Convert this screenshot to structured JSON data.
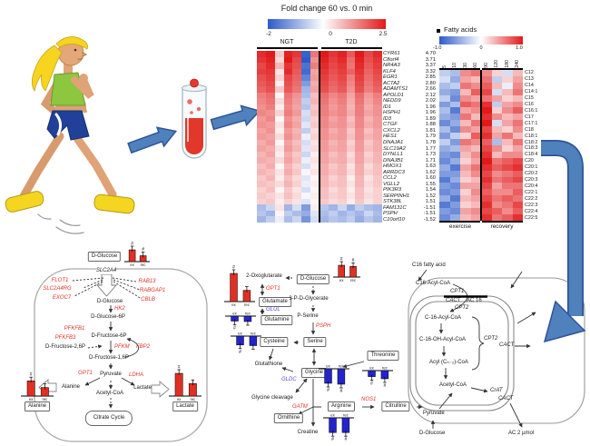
{
  "colors": {
    "heat_red": "#e11919",
    "heat_blue": "#2d5ac8",
    "bar_red": "#e03024",
    "bar_blue": "#2424cc",
    "arrow_blue": "#4f81bd",
    "arrow_border": "#2f5597",
    "enzyme_up": "#e03228",
    "enzyme_down": "#5050c8"
  },
  "gene_heatmap": {
    "title": "Fold change 60 vs. 0 min",
    "colorbar": {
      "min": "-2",
      "mid": "0",
      "max": "2.5"
    },
    "groups": [
      "NGT",
      "T2D"
    ],
    "group_split": 7,
    "domain": [
      -2,
      2.5
    ],
    "genes": [
      {
        "name": "CYR61",
        "fold": "4.70"
      },
      {
        "name": "C8orf4",
        "fold": "3.71"
      },
      {
        "name": "NR4A3",
        "fold": "3.37"
      },
      {
        "name": "KLF4",
        "fold": "3.32"
      },
      {
        "name": "EGR1",
        "fold": "2.85"
      },
      {
        "name": "ACTA2",
        "fold": "2.80"
      },
      {
        "name": "ADAMTS1",
        "fold": "2.66"
      },
      {
        "name": "APOLD1",
        "fold": "2.12"
      },
      {
        "name": "NEDD9",
        "fold": "2.02"
      },
      {
        "name": "ID1",
        "fold": "1.96"
      },
      {
        "name": "HSPH1",
        "fold": "1.96"
      },
      {
        "name": "ID3",
        "fold": "1.89"
      },
      {
        "name": "CTGF",
        "fold": "1.88"
      },
      {
        "name": "CXCL2",
        "fold": "1.81"
      },
      {
        "name": "HES1",
        "fold": "1.79"
      },
      {
        "name": "DNAJA1",
        "fold": "1.78"
      },
      {
        "name": "SLC19A2",
        "fold": "1.77"
      },
      {
        "name": "DYNLL1",
        "fold": "1.73"
      },
      {
        "name": "DNAJB1",
        "fold": "1.71"
      },
      {
        "name": "HMOX1",
        "fold": "1.63"
      },
      {
        "name": "ARRDC3",
        "fold": "1.62"
      },
      {
        "name": "CCL2",
        "fold": "1.60"
      },
      {
        "name": "VGLL2",
        "fold": "1.55"
      },
      {
        "name": "PIK3R3",
        "fold": "1.54"
      },
      {
        "name": "SERPINH1",
        "fold": "1.52"
      },
      {
        "name": "STK38L",
        "fold": "1.51"
      },
      {
        "name": "FAM131C",
        "fold": "-1.51"
      },
      {
        "name": "PSPH",
        "fold": "-1.51"
      },
      {
        "name": "C10orf10",
        "fold": "-1.52"
      }
    ],
    "matrix": [
      [
        2.3,
        2.5,
        0.6,
        2.4,
        2.2,
        -1.9,
        1.5,
        2.5,
        2.2,
        2.4,
        1.8,
        2.5,
        2.0,
        2.3
      ],
      [
        2.2,
        2.4,
        0.4,
        2.5,
        2.0,
        -2.0,
        1.2,
        2.4,
        2.1,
        2.3,
        1.6,
        2.4,
        1.9,
        2.2
      ],
      [
        2.0,
        2.3,
        0.8,
        2.2,
        1.9,
        -1.7,
        1.4,
        2.3,
        2.0,
        2.2,
        1.5,
        2.3,
        1.8,
        2.1
      ],
      [
        2.1,
        2.2,
        0.3,
        2.3,
        1.8,
        -1.8,
        1.0,
        2.2,
        1.9,
        2.1,
        1.7,
        2.2,
        1.7,
        2.0
      ],
      [
        1.9,
        2.1,
        0.5,
        2.0,
        1.7,
        -1.5,
        1.1,
        2.1,
        1.8,
        2.0,
        1.4,
        2.1,
        1.6,
        1.9
      ],
      [
        1.8,
        2.0,
        0.2,
        1.9,
        1.6,
        -1.2,
        0.9,
        2.0,
        1.7,
        1.9,
        1.3,
        2.0,
        1.5,
        1.8
      ],
      [
        1.7,
        1.9,
        0.6,
        1.8,
        1.5,
        -0.9,
        1.0,
        1.9,
        1.6,
        1.8,
        1.2,
        1.9,
        1.4,
        1.7
      ],
      [
        1.4,
        1.6,
        0.1,
        1.5,
        1.2,
        -0.8,
        0.7,
        1.6,
        1.3,
        1.5,
        1.0,
        1.6,
        1.1,
        1.4
      ],
      [
        1.3,
        1.5,
        0.4,
        1.4,
        1.1,
        -0.6,
        0.8,
        1.5,
        1.2,
        1.4,
        0.9,
        1.5,
        1.0,
        1.3
      ],
      [
        1.2,
        1.4,
        0.2,
        1.3,
        1.0,
        -0.7,
        0.6,
        1.4,
        1.1,
        1.3,
        0.8,
        1.4,
        0.9,
        1.2
      ],
      [
        1.3,
        1.2,
        0.5,
        1.4,
        1.1,
        -0.4,
        0.7,
        1.4,
        1.2,
        1.3,
        0.9,
        1.4,
        1.0,
        1.2
      ],
      [
        1.1,
        1.3,
        0.1,
        1.2,
        0.9,
        -0.5,
        0.5,
        1.3,
        1.0,
        1.2,
        0.7,
        1.3,
        0.8,
        1.1
      ],
      [
        1.2,
        1.1,
        0.3,
        1.3,
        1.0,
        -0.3,
        0.6,
        1.3,
        1.1,
        1.2,
        0.8,
        1.3,
        0.9,
        1.1
      ],
      [
        1.0,
        1.2,
        0.2,
        1.1,
        0.8,
        -0.6,
        0.4,
        1.2,
        0.9,
        1.1,
        0.6,
        1.2,
        0.7,
        1.0
      ],
      [
        1.1,
        1.0,
        0.4,
        1.2,
        0.9,
        -0.2,
        0.5,
        1.2,
        1.0,
        1.1,
        0.7,
        1.2,
        0.8,
        1.0
      ],
      [
        0.9,
        1.1,
        0.1,
        1.0,
        0.7,
        -0.4,
        0.3,
        1.1,
        0.8,
        1.0,
        0.5,
        1.1,
        0.6,
        0.9
      ],
      [
        1.0,
        0.9,
        0.3,
        1.1,
        0.8,
        -0.3,
        0.4,
        1.1,
        0.9,
        1.0,
        0.6,
        1.1,
        0.7,
        0.9
      ],
      [
        0.8,
        1.0,
        0.2,
        0.9,
        0.6,
        -0.5,
        0.2,
        1.0,
        0.7,
        0.9,
        0.4,
        1.0,
        0.5,
        0.8
      ],
      [
        0.9,
        0.8,
        0.4,
        1.0,
        0.7,
        -0.2,
        0.3,
        1.0,
        0.8,
        0.9,
        0.5,
        1.0,
        0.6,
        0.8
      ],
      [
        0.7,
        0.9,
        0.1,
        0.8,
        0.5,
        -0.4,
        0.2,
        0.9,
        0.6,
        0.8,
        0.3,
        0.9,
        0.4,
        0.7
      ],
      [
        0.8,
        0.7,
        0.3,
        0.9,
        0.6,
        -0.1,
        0.3,
        0.9,
        0.7,
        0.8,
        0.4,
        0.9,
        0.5,
        0.7
      ],
      [
        0.6,
        0.8,
        0.2,
        0.7,
        0.4,
        -0.3,
        0.1,
        0.8,
        0.5,
        0.7,
        0.2,
        0.8,
        0.3,
        0.6
      ],
      [
        0.7,
        0.6,
        0.4,
        0.8,
        0.5,
        -0.2,
        0.2,
        0.8,
        0.6,
        0.7,
        0.3,
        0.8,
        0.4,
        0.6
      ],
      [
        0.5,
        0.7,
        0.1,
        0.6,
        0.3,
        -0.4,
        0.1,
        0.7,
        0.4,
        0.6,
        0.2,
        0.7,
        0.3,
        0.5
      ],
      [
        0.6,
        0.5,
        0.3,
        0.7,
        0.4,
        -0.1,
        0.2,
        0.7,
        0.5,
        0.6,
        0.3,
        0.7,
        0.4,
        0.5
      ],
      [
        0.5,
        0.6,
        0.2,
        0.5,
        0.3,
        -0.3,
        0.1,
        0.6,
        0.4,
        0.5,
        0.2,
        0.6,
        0.3,
        0.5
      ],
      [
        -0.8,
        -0.5,
        0.3,
        -0.9,
        -0.4,
        -1.2,
        0.2,
        -0.7,
        -0.9,
        -0.5,
        -1.0,
        -0.6,
        -0.8,
        -0.9
      ],
      [
        -0.7,
        -0.9,
        0.1,
        -0.6,
        -0.8,
        -1.0,
        -0.3,
        -0.8,
        -0.6,
        -0.9,
        -0.7,
        -0.9,
        -0.5,
        -0.8
      ],
      [
        -0.9,
        -0.6,
        -0.2,
        -0.8,
        -0.5,
        -1.3,
        -0.4,
        -0.9,
        -0.7,
        -0.8,
        -0.6,
        -1.0,
        -0.7,
        -0.9
      ]
    ]
  },
  "fatty_heatmap": {
    "title": "Fatty acids",
    "colorbar": {
      "min": "-1.0",
      "mid": "0",
      "max": "1.0"
    },
    "domain": [
      -1,
      1
    ],
    "col_labels": [
      "5",
      "10",
      "30",
      "60",
      "90",
      "120",
      "180",
      "240"
    ],
    "group_split": 4,
    "row_labels": [
      "C12",
      "C13",
      "C14",
      "C14:1",
      "C15",
      "C16",
      "C16:1",
      "C17",
      "C17:1",
      "C18",
      "C18:1",
      "C18:2",
      "C18:3",
      "C18:4",
      "C20",
      "C20:1",
      "C20:2",
      "C20:3",
      "C20:4",
      "C22:1",
      "C22:2",
      "C22:3",
      "C22:4",
      "C22:5"
    ],
    "phase_labels": [
      "exercise",
      "recovery"
    ],
    "matrix": [
      [
        -0.3,
        -0.4,
        0.5,
        0.6,
        0.5,
        0.2,
        -0.2,
        0.3
      ],
      [
        -0.2,
        -0.5,
        0.4,
        0.3,
        0.6,
        -0.3,
        0.2,
        0.4
      ],
      [
        -0.4,
        -0.3,
        0.6,
        0.5,
        0.7,
        0.3,
        -0.1,
        0.5
      ],
      [
        -0.5,
        -0.6,
        0.3,
        0.7,
        0.8,
        -0.2,
        0.3,
        0.6
      ],
      [
        -0.3,
        -0.7,
        0.5,
        0.4,
        0.6,
        0.4,
        0.2,
        0.3
      ],
      [
        -0.6,
        -0.4,
        0.7,
        0.6,
        0.9,
        -0.3,
        0.4,
        0.5
      ],
      [
        -0.4,
        -0.8,
        0.4,
        0.5,
        1.0,
        0.2,
        0.5,
        0.7
      ],
      [
        -0.5,
        -0.6,
        0.6,
        0.3,
        0.9,
        0.5,
        0.3,
        0.4
      ],
      [
        -0.7,
        -0.5,
        0.3,
        0.6,
        1.0,
        -0.2,
        0.4,
        0.6
      ],
      [
        -0.4,
        -0.7,
        0.5,
        0.4,
        0.8,
        0.3,
        0.2,
        0.5
      ],
      [
        -0.6,
        -0.3,
        0.2,
        0.7,
        0.9,
        0.4,
        0.6,
        0.3
      ],
      [
        -0.3,
        -0.6,
        0.6,
        0.5,
        0.7,
        -0.4,
        0.3,
        0.6
      ],
      [
        -0.5,
        -0.4,
        0.4,
        0.3,
        0.8,
        0.5,
        0.2,
        0.4
      ],
      [
        -0.6,
        -0.7,
        0.3,
        0.5,
        0.9,
        0.3,
        0.5,
        0.5
      ],
      [
        -0.7,
        -0.5,
        0.2,
        0.4,
        1.0,
        0.6,
        0.7,
        0.8
      ],
      [
        -0.5,
        -0.8,
        0.4,
        0.6,
        0.9,
        0.7,
        0.8,
        0.9
      ],
      [
        -0.6,
        -0.6,
        0.3,
        0.5,
        0.8,
        0.5,
        0.6,
        0.7
      ],
      [
        -0.8,
        -0.5,
        0.2,
        0.3,
        0.9,
        0.6,
        0.7,
        0.8
      ],
      [
        -0.6,
        -0.7,
        0.4,
        0.4,
        0.8,
        0.4,
        0.6,
        0.6
      ],
      [
        -0.7,
        -0.6,
        0.2,
        0.5,
        0.7,
        0.5,
        0.5,
        0.7
      ],
      [
        -0.5,
        -0.8,
        0.3,
        0.4,
        0.8,
        0.6,
        0.7,
        0.6
      ],
      [
        -0.8,
        -0.6,
        0.2,
        0.3,
        0.9,
        0.5,
        0.6,
        0.8
      ],
      [
        -0.6,
        -0.7,
        0.4,
        0.5,
        0.8,
        0.7,
        0.5,
        0.7
      ],
      [
        -0.7,
        -0.5,
        0.3,
        0.4,
        0.9,
        0.6,
        0.7,
        0.9
      ]
    ]
  },
  "glycolysis": {
    "glucose_box": "D-Glucose",
    "transporter": "SLC2A4",
    "regulators": [
      "FLOT1",
      "SLC2A4RG",
      "EXOC7",
      "RAB13",
      "RABGAP1",
      "CBLB"
    ],
    "glucose_in": "D-Glucose",
    "hk2": "HK2",
    "g6p": "D-Glucose-6P",
    "f6p": "D-Fructose-6P",
    "pfkfb1": "PFKFB1",
    "pfkfb3": "PFKFB3",
    "pfkm": "PFKM",
    "fbp2": "FBP2",
    "f26p": "D-Fructose-2,6P",
    "f16p": "D-Fructose-1,6P",
    "pyruvate": "Pyruvate",
    "gpt1": "GPT1",
    "ldha": "LDHA",
    "alanine": "Alanine",
    "lactate": "Lactate",
    "acetyl_coa": "Acetyl-CoA",
    "citrate_cycle": "Citrate Cycle",
    "alanine_bar_label": "Alanine",
    "lactate_bar_label": "Lactate"
  },
  "amino_acids": {
    "oxoglutarate": "2-Oxoglutarate",
    "gpt1": "GPT1",
    "glutamate": "Glutamate",
    "glul": "GLUL",
    "glutamine": "Glutamine",
    "glucose_box": "D-Glucose",
    "glycerate": "3-P-D-Glycerate",
    "p_serine": "P-Serine",
    "psph": "PSPH",
    "serine": "Serine",
    "cysteine": "Cysteine",
    "glutathione": "Glutathione",
    "glycine": "Glycine",
    "threonine": "Threonine",
    "gldc": "GLDC",
    "glycine_cleavage": "Glycine cleavage",
    "gatm": "GATM",
    "ornithine": "Ornithine",
    "arginine": "Arginine",
    "nos1": "NOS1",
    "citrulline": "Citrulline",
    "creatine": "Creatine"
  },
  "beta_oxidation": {
    "c16_fatty_acid": "C16 fatty acid",
    "c16_acyl_coa": "C16-Acyl-CoA",
    "cpt1": "CPT1",
    "cact_membrane": "CACT",
    "ac16": "AC 16",
    "cpt2_membrane": "CPT2",
    "c16_acyl_coa_matrix": "C-16-Acyl-CoA",
    "c16_oh_acyl_coa": "C-16-OH-Acyl-CoA",
    "acyl_coa": "Acyl (Cₙ₋₂)-CoA",
    "cpt2_brace": "CPT2",
    "cact_export": "CACT",
    "acetyl_coa": "Acetyl-CoA",
    "crat": "CrAT",
    "cact_inner": "CACT",
    "pyruvate": "Pyruvate",
    "glucose": "D-Glucose",
    "ac2": "AC 2 µmol"
  },
  "bars": {
    "group_labels": [
      "ex",
      "rec"
    ],
    "hash_symbol": "#",
    "items": {
      "g_glucose": {
        "direction": "up",
        "color": "#e03024",
        "values": [
          1,
          0.5
        ],
        "hash": [
          true,
          true
        ]
      },
      "alanine": {
        "direction": "up",
        "color": "#e03024",
        "values": [
          0.8,
          0.45
        ],
        "hash": [
          true,
          false
        ]
      },
      "lactate": {
        "direction": "up",
        "color": "#e03024",
        "values": [
          1,
          0.55
        ],
        "hash": [
          true,
          false
        ]
      },
      "c_glutamate": {
        "direction": "up",
        "color": "#e03024",
        "values": [
          1,
          0.4
        ],
        "hash": [
          true,
          false
        ]
      },
      "c_glucose": {
        "direction": "up",
        "color": "#e03024",
        "values": [
          1,
          0.9
        ],
        "hash": [
          true,
          true
        ]
      },
      "c_glutamine": {
        "direction": "down",
        "color": "#2424cc",
        "values": [
          0.55,
          0.6
        ],
        "hash": [
          true,
          false
        ]
      },
      "c_cysteine": {
        "direction": "down",
        "color": "#2424cc",
        "values": [
          0.7,
          0.75
        ],
        "hash": [
          true,
          false
        ]
      },
      "c_glycine": {
        "direction": "down",
        "color": "#2424cc",
        "values": [
          0.8,
          0.85
        ],
        "hash": [
          true,
          true
        ]
      },
      "c_threonine": {
        "direction": "down",
        "color": "#2424cc",
        "values": [
          0.55,
          0.75
        ],
        "hash": [
          true,
          true
        ]
      },
      "c_arginine": {
        "direction": "down",
        "color": "#2424cc",
        "values": [
          0.9,
          0.9
        ],
        "hash": [
          true,
          true
        ]
      }
    }
  }
}
